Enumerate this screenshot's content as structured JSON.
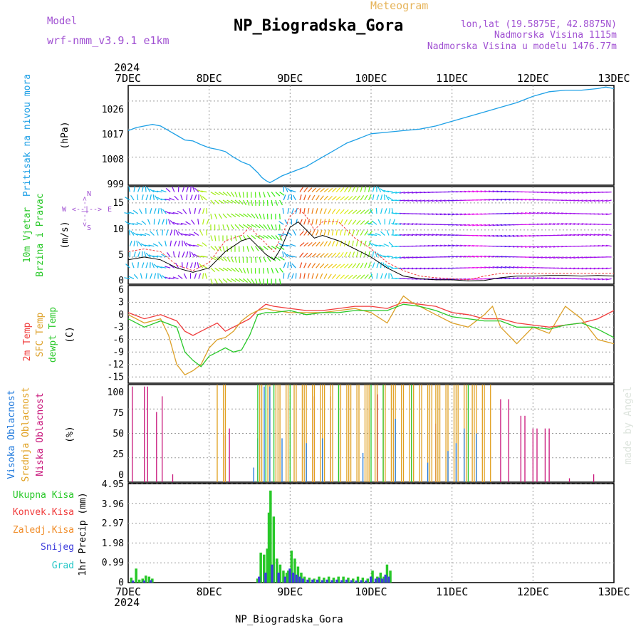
{
  "header": {
    "model_label": "Model",
    "model_name": "wrf-nmm_v3.9.1 e1km",
    "meteogram_label": "Meteogram",
    "title": "NP_Biogradska_Gora",
    "lonlat": "lon,lat (19.5875E, 42.8875N)",
    "elevation": "Nadmorska Visina 1115m",
    "model_elevation": "Nadmorska Visina u modelu 1476.77m",
    "year": "2024",
    "footer_title": "NP_Biogradska_Gora",
    "credit": "made by Angel"
  },
  "colors": {
    "pressure": "#1ea0e6",
    "temp2m": "#f03c3c",
    "sfc": "#dca028",
    "dewpt": "#28c828",
    "high_cloud": "#1e78dc",
    "mid_cloud": "#e0a020",
    "low_cloud": "#c8147a",
    "total_precip": "#28c828",
    "convective": "#f03c3c",
    "freezing": "#f08c28",
    "snow": "#3c3cdc",
    "hail": "#28c8c8",
    "purple": "#a050d2"
  },
  "chart_data": {
    "type": "line",
    "x_ticks": [
      "7DEC",
      "8DEC",
      "9DEC",
      "10DEC",
      "11DEC",
      "12DEC",
      "13DEC"
    ],
    "x_range_days": [
      7,
      13
    ],
    "panels": {
      "pressure": {
        "ylabel_main": "Pritisak na nivou mora",
        "ylabel_unit": "(hPa)",
        "yticks": [
          "1026",
          "1017",
          "1008",
          "999"
        ],
        "ylim": [
          999,
          1031
        ],
        "series": [
          {
            "name": "Pritisak na nivou mora",
            "x": [
              7.0,
              7.1,
              7.2,
              7.3,
              7.4,
              7.5,
              7.6,
              7.7,
              7.8,
              7.9,
              8.0,
              8.1,
              8.2,
              8.3,
              8.4,
              8.5,
              8.6,
              8.65,
              8.7,
              8.75,
              8.8,
              8.9,
              9.0,
              9.1,
              9.2,
              9.3,
              9.4,
              9.5,
              9.6,
              9.7,
              9.8,
              9.9,
              10.0,
              10.2,
              10.4,
              10.6,
              10.8,
              11.0,
              11.2,
              11.4,
              11.6,
              11.8,
              12.0,
              12.2,
              12.4,
              12.6,
              12.8,
              12.9,
              13.0
            ],
            "y": [
              1016.5,
              1017.5,
              1018,
              1018.5,
              1018,
              1016.5,
              1015,
              1013.5,
              1013.2,
              1012,
              1011,
              1010.5,
              1009.8,
              1008,
              1006.5,
              1005.5,
              1003,
              1001.5,
              1000.5,
              999.8,
              1000.5,
              1002,
              1003,
              1004,
              1005,
              1006.5,
              1008,
              1009.5,
              1011,
              1012.5,
              1013.5,
              1014.5,
              1015.5,
              1016,
              1016.5,
              1017,
              1018,
              1019.5,
              1021,
              1022.5,
              1024,
              1025.5,
              1027.5,
              1029,
              1029.5,
              1029.5,
              1030,
              1030.5,
              1030
            ]
          }
        ]
      },
      "wind": {
        "ylabel_main": "10m Vjetar",
        "ylabel_sub": "Brzina i Pravac",
        "ylabel_unit": "(m/s)",
        "yticks": [
          "15",
          "10",
          "5",
          "0"
        ],
        "ylim": [
          0,
          18
        ],
        "compass_labels": [
          "N",
          "W",
          "E",
          "S",
          "<--|-->",
          "<--|-->"
        ],
        "series": [
          {
            "name": "speed",
            "x": [
              7.0,
              7.2,
              7.4,
              7.6,
              7.8,
              8.0,
              8.2,
              8.4,
              8.5,
              8.6,
              8.7,
              8.8,
              8.9,
              9.0,
              9.1,
              9.2,
              9.3,
              9.4,
              9.6,
              9.8,
              10.0,
              10.2,
              10.4,
              10.6,
              10.8,
              11.0,
              11.2,
              11.4,
              11.6,
              11.8,
              12.0,
              12.2,
              12.4,
              12.6,
              12.8,
              13.0
            ],
            "y": [
              4.5,
              5,
              4.5,
              3,
              2.2,
              3,
              6,
              8,
              8.5,
              7,
              5.5,
              4.5,
              7,
              10.5,
              11.5,
              10,
              8.5,
              9,
              8,
              6.5,
              5,
              3,
              1.5,
              1,
              0.8,
              0.8,
              0.6,
              0.7,
              1.2,
              1.5,
              1.5,
              1.6,
              1.6,
              1.5,
              1.6,
              1.5
            ]
          },
          {
            "name": "gust",
            "x": [
              7.0,
              7.2,
              7.4,
              7.6,
              7.8,
              8.0,
              8.2,
              8.4,
              8.5,
              8.6,
              8.7,
              8.8,
              8.9,
              9.0,
              9.1,
              9.2,
              9.3,
              9.4,
              9.6,
              9.8,
              10.0,
              10.2,
              10.4,
              10.6,
              10.8,
              11.0,
              11.2,
              11.4,
              11.6,
              11.8,
              12.0,
              12.2,
              12.4,
              12.6,
              12.8,
              13.0
            ],
            "y": [
              6,
              6.5,
              6,
              3.5,
              2.5,
              4,
              8,
              9,
              10.5,
              9,
              7.5,
              6,
              9,
              12.5,
              14,
              12.5,
              10,
              11.5,
              11.5,
              8.5,
              6.5,
              4,
              2.5,
              1.5,
              1.2,
              1,
              0.8,
              1.5,
              2,
              2,
              2,
              2,
              2,
              2,
              2,
              2
            ]
          }
        ]
      },
      "temperature": {
        "ylabel_main": "2m Temp",
        "ylabel_sub": "SFC Temp",
        "ylabel_sub2": "dewpt Temp",
        "ylabel_unit": "(C)",
        "yticks": [
          "6",
          "3",
          "0",
          "-3",
          "-6",
          "-9",
          "-12",
          "-15"
        ],
        "ylim": [
          -16.5,
          7
        ],
        "series": [
          {
            "name": "2m Temp",
            "x": [
              7.0,
              7.2,
              7.4,
              7.6,
              7.7,
              7.8,
              7.9,
              8.0,
              8.1,
              8.2,
              8.3,
              8.4,
              8.5,
              8.6,
              8.7,
              8.8,
              9.0,
              9.2,
              9.4,
              9.6,
              9.8,
              10.0,
              10.2,
              10.4,
              10.6,
              10.8,
              11.0,
              11.2,
              11.4,
              11.6,
              11.8,
              12.0,
              12.2,
              12.4,
              12.6,
              12.8,
              13.0
            ],
            "y": [
              0.5,
              -1,
              0,
              -1.5,
              -4,
              -5,
              -4,
              -3,
              -2,
              -4,
              -3,
              -2,
              -1,
              1,
              2.5,
              2,
              1.5,
              1,
              1,
              1.5,
              2,
              2,
              1.5,
              3,
              2.5,
              2,
              0.5,
              0,
              -1,
              -1,
              -2,
              -2.5,
              -3,
              -2.5,
              -2,
              -1,
              1
            ]
          },
          {
            "name": "SFC Temp",
            "x": [
              7.0,
              7.2,
              7.4,
              7.5,
              7.6,
              7.7,
              7.8,
              7.9,
              8.0,
              8.1,
              8.2,
              8.3,
              8.4,
              8.5,
              8.6,
              8.7,
              8.8,
              9.0,
              9.2,
              9.4,
              9.6,
              9.8,
              10.0,
              10.2,
              10.3,
              10.4,
              10.5,
              10.6,
              10.8,
              11.0,
              11.2,
              11.4,
              11.5,
              11.6,
              11.8,
              12.0,
              12.2,
              12.4,
              12.6,
              12.8,
              13.0
            ],
            "y": [
              0,
              -2,
              -1,
              -5,
              -12,
              -14.5,
              -13.5,
              -12,
              -8,
              -6,
              -5.5,
              -4,
              -1.5,
              0,
              1,
              1.5,
              1,
              0.5,
              0.5,
              0.5,
              1,
              1.5,
              0.5,
              -2,
              1.5,
              4.5,
              3,
              2,
              0,
              -2,
              -3,
              0,
              2,
              -3,
              -7,
              -3,
              -4.5,
              2,
              -1,
              -6,
              -7
            ]
          },
          {
            "name": "dewpt Temp",
            "x": [
              7.0,
              7.2,
              7.4,
              7.6,
              7.7,
              7.8,
              7.9,
              8.0,
              8.1,
              8.2,
              8.3,
              8.4,
              8.5,
              8.6,
              8.7,
              8.8,
              9.0,
              9.2,
              9.4,
              9.6,
              9.8,
              10.0,
              10.2,
              10.4,
              10.6,
              10.8,
              11.0,
              11.2,
              11.4,
              11.6,
              11.8,
              12.0,
              12.2,
              12.4,
              12.6,
              12.8,
              13.0
            ],
            "y": [
              -1,
              -3,
              -1.5,
              -3,
              -9,
              -11,
              -12.5,
              -10,
              -9,
              -8,
              -9,
              -8.5,
              -5,
              0,
              0.5,
              0.5,
              1,
              0,
              0.5,
              0.5,
              1,
              1,
              1,
              2.5,
              2,
              1,
              -0.5,
              -1,
              -1.5,
              -1.5,
              -3,
              -3,
              -3.5,
              -2.5,
              -2,
              -3.5,
              -5.5
            ]
          }
        ]
      },
      "clouds": {
        "ylabel_main": "Visoka Oblacnost",
        "ylabel_sub": "Srednja Oblacnost",
        "ylabel_sub2": "Niska Oblacnost",
        "ylabel_unit": "(%)",
        "yticks": [
          "100",
          "75",
          "50",
          "25",
          "0"
        ],
        "ylim": [
          0,
          100
        ]
      },
      "precip": {
        "ylabel_unit": "1hr Precip (mm)",
        "yticks": [
          "4.95",
          "3.96",
          "2.97",
          "1.98",
          "0.99",
          "0"
        ],
        "ylim": [
          0,
          4.95
        ],
        "legend": [
          "Ukupna Kisa",
          "Konvek.Kisa",
          "Zaledj.Kisa",
          "Snijeg",
          "Grad"
        ],
        "series": [
          {
            "name": "Ukupna Kisa",
            "x": [
              7.04,
              7.1,
              7.14,
              7.18,
              7.22,
              7.26,
              7.3,
              8.6,
              8.64,
              8.68,
              8.72,
              8.74,
              8.76,
              8.8,
              8.84,
              8.88,
              8.92,
              8.96,
              8.98,
              9.02,
              9.06,
              9.1,
              9.14,
              9.18,
              9.24,
              9.3,
              9.36,
              9.42,
              9.48,
              9.54,
              9.6,
              9.66,
              9.72,
              9.78,
              9.84,
              9.9,
              9.96,
              10.02,
              10.08,
              10.12,
              10.16,
              10.2,
              10.24
            ],
            "y": [
              0.25,
              0.7,
              0.15,
              0.2,
              0.35,
              0.3,
              0.2,
              0.2,
              1.5,
              1.4,
              1.7,
              3.5,
              4.6,
              3.3,
              1.2,
              0.9,
              0.6,
              0.5,
              0.6,
              1.6,
              1.2,
              0.8,
              0.5,
              0.3,
              0.25,
              0.2,
              0.3,
              0.25,
              0.3,
              0.25,
              0.3,
              0.3,
              0.25,
              0.2,
              0.3,
              0.25,
              0.2,
              0.6,
              0.3,
              0.5,
              0.3,
              0.9,
              0.6
            ]
          },
          {
            "name": "Snijeg",
            "x": [
              7.06,
              7.2,
              7.28,
              8.62,
              8.7,
              8.78,
              8.86,
              8.94,
              9.0,
              9.04,
              9.08,
              9.12,
              9.16,
              9.22,
              9.28,
              9.34,
              9.4,
              9.46,
              9.52,
              9.58,
              9.64,
              9.7,
              9.76,
              9.82,
              9.88,
              9.94,
              10.0,
              10.06,
              10.1,
              10.14,
              10.18,
              10.22
            ],
            "y": [
              0.1,
              0.1,
              0.12,
              0.3,
              0.5,
              0.9,
              0.5,
              0.3,
              0.7,
              0.5,
              0.4,
              0.3,
              0.2,
              0.15,
              0.15,
              0.15,
              0.12,
              0.15,
              0.12,
              0.15,
              0.12,
              0.15,
              0.12,
              0.1,
              0.12,
              0.1,
              0.3,
              0.2,
              0.25,
              0.2,
              0.4,
              0.3
            ]
          }
        ]
      }
    }
  }
}
